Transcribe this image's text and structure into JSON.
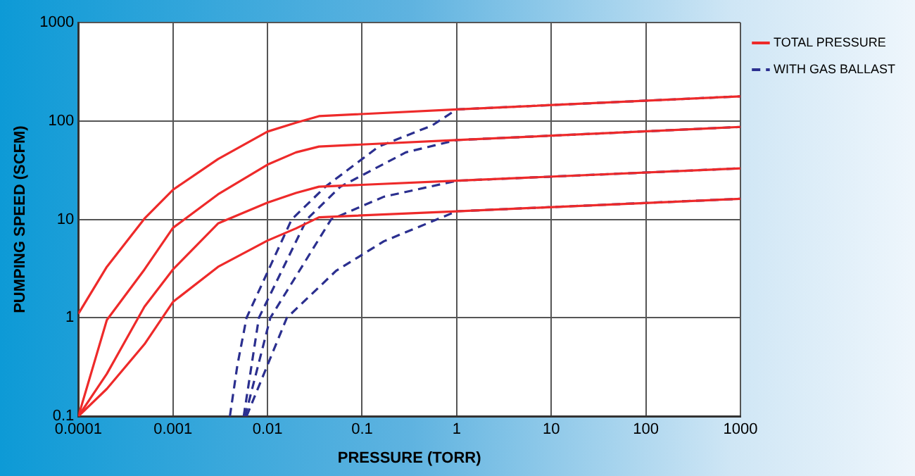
{
  "chart_data": {
    "type": "line",
    "xlabel": "PRESSURE (TORR)",
    "ylabel": "PUMPING SPEED (SCFM)",
    "log": "xy",
    "xlim": [
      0.0001,
      1000
    ],
    "ylim": [
      0.1,
      1000
    ],
    "xticks": [
      0.0001,
      0.001,
      0.01,
      0.1,
      1,
      10,
      100,
      1000
    ],
    "yticks": [
      0.1,
      1,
      10,
      100,
      1000
    ],
    "grid": true,
    "legend": "right",
    "marker": "none",
    "series": [
      {
        "name": "TOTAL PRESSURE",
        "color": "#ee2a2a",
        "line_style": "solid",
        "x": [
          0.0001,
          0.0002,
          0.0005,
          0.001,
          0.003,
          0.01,
          0.02,
          0.035,
          1,
          1000
        ],
        "values": [
          1.1,
          3.3,
          10.2,
          20,
          41,
          78,
          96,
          112,
          131,
          178
        ]
      },
      {
        "color": "#ee2a2a",
        "line_style": "solid",
        "x": [
          0.0001,
          0.0002,
          0.0005,
          0.001,
          0.003,
          0.01,
          0.02,
          0.035,
          1,
          1000
        ],
        "values": [
          0.1,
          0.95,
          3.1,
          8.2,
          18,
          36,
          48,
          55,
          64,
          87
        ]
      },
      {
        "color": "#ee2a2a",
        "line_style": "solid",
        "x": [
          0.0001,
          0.0002,
          0.0005,
          0.001,
          0.003,
          0.01,
          0.02,
          0.035,
          1,
          1000
        ],
        "values": [
          0.1,
          0.27,
          1.3,
          3.1,
          9.1,
          14.8,
          18.6,
          21.5,
          24.7,
          33
        ]
      },
      {
        "color": "#ee2a2a",
        "line_style": "solid",
        "x": [
          0.0001,
          0.0002,
          0.0005,
          0.001,
          0.003,
          0.01,
          0.02,
          0.035,
          1,
          1000
        ],
        "values": [
          0.1,
          0.19,
          0.54,
          1.45,
          3.3,
          6.1,
          8.1,
          10.5,
          12.1,
          16.2
        ]
      },
      {
        "name": "WITH GAS BALLAST",
        "color": "#2b2f8f",
        "line_style": "dashed",
        "x": [
          0.004,
          0.0048,
          0.006,
          0.018,
          0.041,
          0.15,
          0.55,
          1,
          1000
        ],
        "values": [
          0.1,
          0.33,
          1,
          10,
          21.5,
          55,
          90,
          131,
          178
        ]
      },
      {
        "color": "#2b2f8f",
        "line_style": "dashed",
        "x": [
          0.0056,
          0.0081,
          0.026,
          0.059,
          0.29,
          1,
          1000
        ],
        "values": [
          0.1,
          1,
          10,
          21.5,
          48,
          64,
          87
        ]
      },
      {
        "color": "#2b2f8f",
        "line_style": "dashed",
        "x": [
          0.0058,
          0.0107,
          0.047,
          0.17,
          1,
          1000
        ],
        "values": [
          0.1,
          1,
          10,
          17,
          24.7,
          33
        ]
      },
      {
        "color": "#2b2f8f",
        "line_style": "dashed",
        "x": [
          0.006,
          0.016,
          0.053,
          0.17,
          1,
          1000
        ],
        "values": [
          0.1,
          1,
          3,
          6,
          12.1,
          16.2
        ]
      }
    ]
  }
}
